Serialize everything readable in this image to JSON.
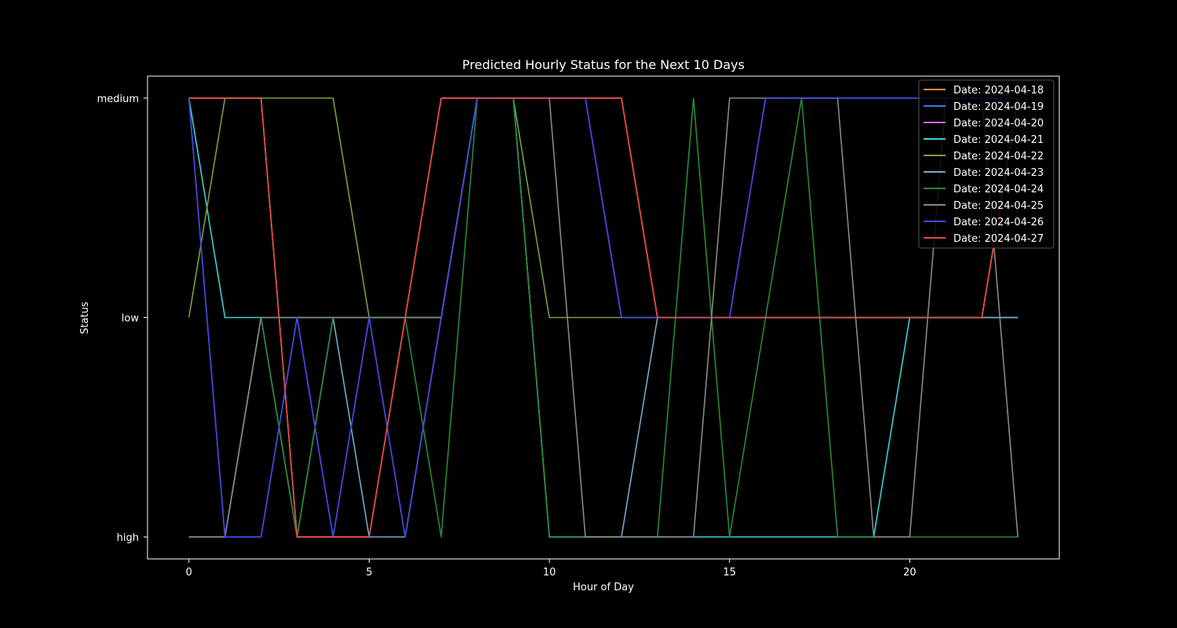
{
  "chart_data": {
    "type": "line",
    "title": "Predicted Hourly Status for the Next 10 Days",
    "xlabel": "Hour of Day",
    "ylabel": "Status",
    "xlim": [
      -1.15,
      24.15
    ],
    "y_categories": [
      "high",
      "low",
      "medium"
    ],
    "ylim": [
      -0.1,
      2.1
    ],
    "x_ticks": [
      0,
      5,
      10,
      15,
      20
    ],
    "grid": false,
    "legend_position": "top-right",
    "x": [
      0,
      1,
      2,
      3,
      4,
      5,
      6,
      7,
      8,
      9,
      10,
      11,
      12,
      13,
      14,
      15,
      16,
      17,
      18,
      19,
      20,
      21,
      22,
      23
    ],
    "series": [
      {
        "name": "Date: 2024-04-18",
        "color": "#f0883e",
        "values": [
          "medium",
          "medium",
          "medium",
          "high",
          "high",
          "high",
          "low",
          "medium",
          "medium",
          "medium",
          "medium",
          "medium",
          "medium",
          "low",
          "low",
          "low",
          "low",
          "low",
          "low",
          "low",
          "low",
          "low",
          "low",
          "medium"
        ]
      },
      {
        "name": "Date: 2024-04-19",
        "color": "#2f7fe6",
        "values": [
          "medium",
          "high",
          "high",
          "low",
          "high",
          "low",
          "high",
          "low",
          "medium",
          "medium",
          "medium",
          "medium",
          "low",
          "low",
          "low",
          "low",
          "medium",
          "medium",
          "medium",
          "medium",
          "medium",
          "medium",
          "medium",
          "medium"
        ]
      },
      {
        "name": "Date: 2024-04-20",
        "color": "#e060e0",
        "values": [
          "medium",
          "medium",
          "medium",
          "high",
          "high",
          "high",
          "low",
          "medium",
          "medium",
          "medium",
          "medium",
          "medium",
          "medium",
          "low",
          "low",
          "low",
          "low",
          "low",
          "low",
          "low",
          "low",
          "low",
          "low",
          "medium"
        ]
      },
      {
        "name": "Date: 2024-04-21",
        "color": "#39d3d3",
        "values": [
          "medium",
          "low",
          "low",
          "low",
          "low",
          "low",
          "low",
          "low",
          "medium",
          "medium",
          "high",
          "high",
          "high",
          "high",
          "high",
          "high",
          "high",
          "high",
          "high",
          "high",
          "low",
          "low",
          "low",
          "low"
        ]
      },
      {
        "name": "Date: 2024-04-22",
        "color": "#77a043",
        "values": [
          "low",
          "medium",
          "medium",
          "medium",
          "medium",
          "low",
          "low",
          "low",
          "medium",
          "medium",
          "low",
          "low",
          "low",
          "low",
          "low",
          "low",
          "low",
          "low",
          "low",
          "low",
          "low",
          "low",
          "low",
          "low"
        ]
      },
      {
        "name": "Date: 2024-04-23",
        "color": "#79a8c8",
        "values": [
          "high",
          "high",
          "low",
          "high",
          "low",
          "high",
          "high",
          "low",
          "medium",
          "medium",
          "high",
          "high",
          "high",
          "low",
          "low",
          "low",
          "low",
          "low",
          "low",
          "low",
          "low",
          "low",
          "low",
          "low"
        ]
      },
      {
        "name": "Date: 2024-04-24",
        "color": "#27893c",
        "values": [
          "high",
          "high",
          "low",
          "high",
          "low",
          "low",
          "low",
          "high",
          "medium",
          "medium",
          "high",
          "high",
          "high",
          "high",
          "medium",
          "high",
          "low",
          "medium",
          "high",
          "high",
          "high",
          "high",
          "high",
          "high"
        ]
      },
      {
        "name": "Date: 2024-04-25",
        "color": "#888888",
        "values": [
          "high",
          "high",
          "low",
          "low",
          "low",
          "low",
          "low",
          "low",
          "medium",
          "medium",
          "medium",
          "high",
          "high",
          "high",
          "high",
          "medium",
          "medium",
          "medium",
          "medium",
          "high",
          "high",
          "medium",
          "medium",
          "high"
        ]
      },
      {
        "name": "Date: 2024-04-26",
        "color": "#4346e0",
        "values": [
          "medium",
          "high",
          "high",
          "low",
          "high",
          "low",
          "high",
          "low",
          "medium",
          "medium",
          "medium",
          "medium",
          "low",
          "low",
          "low",
          "low",
          "medium",
          "medium",
          "medium",
          "medium",
          "medium",
          "medium",
          "medium",
          "medium"
        ]
      },
      {
        "name": "Date: 2024-04-27",
        "color": "#e04a40",
        "values": [
          "medium",
          "medium",
          "medium",
          "high",
          "high",
          "high",
          "low",
          "medium",
          "medium",
          "medium",
          "medium",
          "medium",
          "medium",
          "low",
          "low",
          "low",
          "low",
          "low",
          "low",
          "low",
          "low",
          "low",
          "low",
          "medium"
        ]
      }
    ]
  }
}
